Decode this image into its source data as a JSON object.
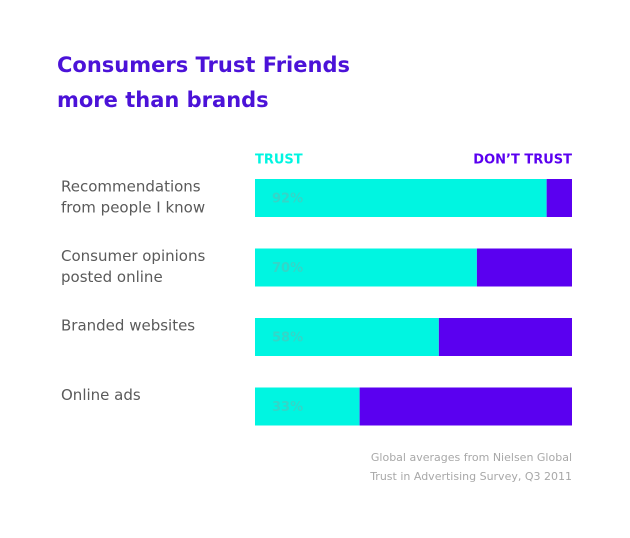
{
  "chart_data": {
    "type": "stacked_bar_horizontal",
    "title": [
      "Consumers Trust Friends",
      "more than brands"
    ],
    "categories": [
      [
        "Recommendations",
        "from people I know"
      ],
      [
        "Consumer opinions",
        "posted online"
      ],
      [
        "Branded websites"
      ],
      [
        "Online ads"
      ]
    ],
    "series": [
      {
        "name": "TRUST",
        "color": "#00f5e1",
        "values": [
          92,
          70,
          58,
          33
        ],
        "value_labels": [
          "92%",
          "70%",
          "58%",
          "33%"
        ]
      },
      {
        "name": "DON’T TRUST",
        "color": "#5a00f0",
        "values": [
          8,
          30,
          42,
          67
        ]
      }
    ],
    "xlim": [
      0,
      100
    ],
    "note": [
      "Global averages from Nielsen Global",
      "Trust in Advertising Survey, Q3 2011"
    ]
  }
}
